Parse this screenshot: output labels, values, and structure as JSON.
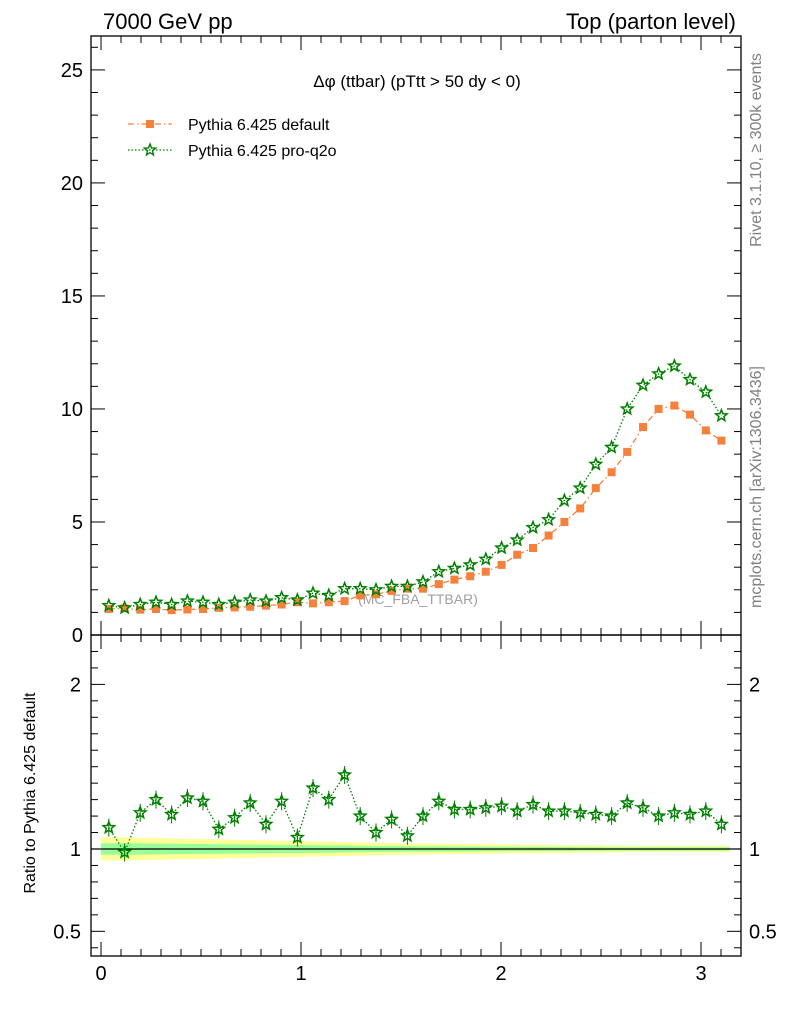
{
  "header": {
    "left": "7000 GeV pp",
    "right": "Top (parton level)"
  },
  "side_labels": {
    "rivet": "Rivet 3.1.10, ≥ 300k events",
    "mcplots": "mcplots.cern.ch [arXiv:1306.3436]"
  },
  "chart_data": [
    {
      "type": "line",
      "panel": "main",
      "title": "Δφ (ttbar) (pTtt > 50 dy < 0)",
      "watermark": "(MC_FBA_TTBAR)",
      "xlim": [
        -0.05,
        3.2
      ],
      "ylim": [
        0,
        26.5
      ],
      "y_ticks": [
        0,
        5,
        10,
        15,
        20,
        25
      ],
      "x_ticks": [
        0,
        1,
        2,
        3
      ],
      "legend_position": "top-left",
      "x": [
        0.039,
        0.118,
        0.196,
        0.275,
        0.353,
        0.432,
        0.51,
        0.589,
        0.668,
        0.746,
        0.825,
        0.903,
        0.982,
        1.06,
        1.139,
        1.218,
        1.296,
        1.375,
        1.453,
        1.532,
        1.61,
        1.689,
        1.767,
        1.846,
        1.924,
        2.003,
        2.081,
        2.16,
        2.238,
        2.317,
        2.396,
        2.474,
        2.553,
        2.631,
        2.71,
        2.788,
        2.867,
        2.945,
        3.024,
        3.102
      ],
      "series": [
        {
          "name": "Pythia 6.425 default",
          "color": "#f5813c",
          "marker": "square",
          "values": [
            1.15,
            1.18,
            1.12,
            1.15,
            1.1,
            1.13,
            1.15,
            1.2,
            1.22,
            1.25,
            1.3,
            1.35,
            1.45,
            1.4,
            1.45,
            1.5,
            1.75,
            1.8,
            1.95,
            2.05,
            2.05,
            2.25,
            2.45,
            2.6,
            2.8,
            3.1,
            3.55,
            3.85,
            4.4,
            5.0,
            5.6,
            6.5,
            7.2,
            8.1,
            9.2,
            10.0,
            10.15,
            9.75,
            9.05,
            8.6
          ]
        },
        {
          "name": "Pythia 6.425 pro-q2o",
          "color": "#007f00",
          "marker": "star",
          "values": [
            1.3,
            1.2,
            1.35,
            1.45,
            1.35,
            1.5,
            1.45,
            1.35,
            1.45,
            1.55,
            1.5,
            1.65,
            1.55,
            1.85,
            1.75,
            2.05,
            2.05,
            2.0,
            2.15,
            2.15,
            2.35,
            2.8,
            2.95,
            3.1,
            3.35,
            3.85,
            4.2,
            4.75,
            5.1,
            5.95,
            6.5,
            7.55,
            8.3,
            10.0,
            11.05,
            11.55,
            11.9,
            11.3,
            10.75,
            9.7
          ]
        }
      ]
    },
    {
      "type": "line",
      "panel": "ratio",
      "ylabel": "Ratio to Pythia 6.425 default",
      "xlim": [
        -0.05,
        3.2
      ],
      "ylim": [
        0.35,
        2.3
      ],
      "y_ticks": [
        0.5,
        1,
        2
      ],
      "y_tick_labels": [
        "0.5",
        "1",
        "2"
      ],
      "x_ticks": [
        0,
        1,
        2,
        3
      ],
      "x_tick_labels": [
        "0",
        "1",
        "2",
        "3"
      ],
      "reference_line": 1,
      "band_outer_halfwidth": [
        0.07,
        0.07,
        0.068,
        0.066,
        0.064,
        0.062,
        0.06,
        0.058,
        0.056,
        0.054,
        0.052,
        0.05,
        0.048,
        0.046,
        0.044,
        0.042,
        0.04,
        0.038,
        0.036,
        0.034,
        0.033,
        0.032,
        0.031,
        0.03,
        0.029,
        0.028,
        0.027,
        0.026,
        0.025,
        0.024,
        0.023,
        0.022,
        0.021,
        0.02,
        0.02,
        0.02,
        0.02,
        0.02,
        0.02,
        0.02
      ],
      "band_inner_halfwidth": [
        0.035,
        0.035,
        0.034,
        0.033,
        0.032,
        0.031,
        0.03,
        0.029,
        0.028,
        0.027,
        0.026,
        0.025,
        0.024,
        0.023,
        0.022,
        0.021,
        0.02,
        0.019,
        0.018,
        0.017,
        0.016,
        0.016,
        0.015,
        0.015,
        0.014,
        0.014,
        0.013,
        0.013,
        0.012,
        0.012,
        0.011,
        0.011,
        0.01,
        0.01,
        0.01,
        0.01,
        0.01,
        0.01,
        0.01,
        0.01
      ],
      "series": [
        {
          "name": "Pythia 6.425 pro-q2o",
          "color": "#007f00",
          "values": [
            1.13,
            0.98,
            1.22,
            1.3,
            1.21,
            1.31,
            1.29,
            1.12,
            1.19,
            1.28,
            1.15,
            1.29,
            1.07,
            1.37,
            1.3,
            1.45,
            1.2,
            1.1,
            1.18,
            1.08,
            1.2,
            1.29,
            1.24,
            1.24,
            1.25,
            1.26,
            1.23,
            1.27,
            1.23,
            1.23,
            1.22,
            1.21,
            1.2,
            1.28,
            1.25,
            1.2,
            1.22,
            1.21,
            1.23,
            1.15
          ]
        }
      ]
    }
  ]
}
